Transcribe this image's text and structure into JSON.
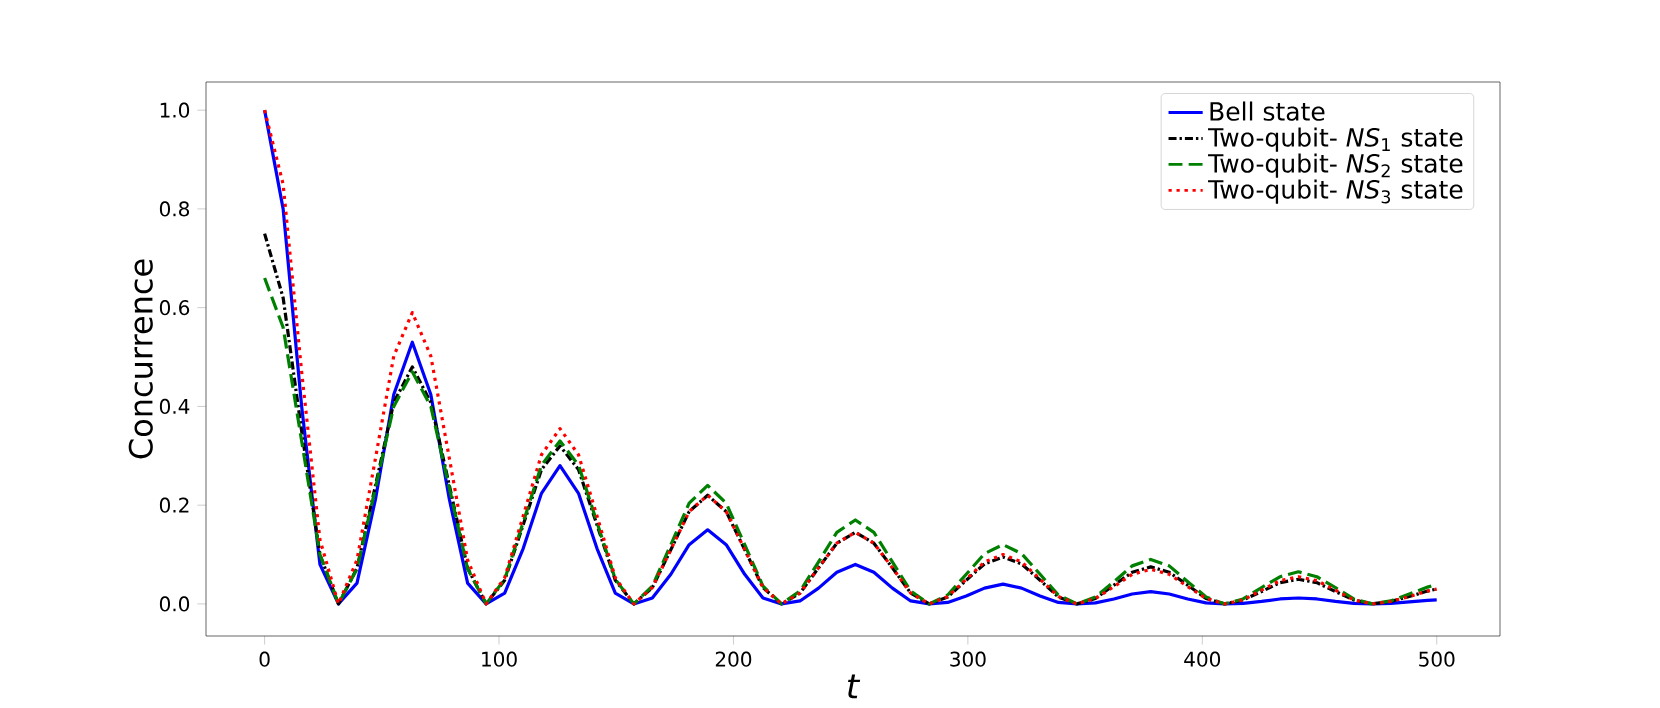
{
  "chart_data": {
    "type": "line",
    "xlabel": "*t*",
    "ylabel": "Concurrence",
    "xlim": [
      -25,
      527
    ],
    "ylim": [
      -0.065,
      1.057
    ],
    "xticks": [
      0,
      100,
      200,
      300,
      400,
      500
    ],
    "yticks": [
      {
        "value": 0,
        "label": "0.0"
      },
      {
        "value": 0.2,
        "label": "0.2"
      },
      {
        "value": 0.4,
        "label": "0.4"
      },
      {
        "value": 0.6,
        "label": "0.6"
      },
      {
        "value": 0.8,
        "label": "0.8"
      },
      {
        "value": 1,
        "label": "1.0"
      }
    ],
    "legend": "top right",
    "x": [
      0,
      7.9,
      15.8,
      23.6,
      31.5,
      39.4,
      47.3,
      55.1,
      63,
      70.9,
      78.8,
      86.6,
      94.5,
      102.4,
      110.3,
      118.1,
      126,
      133.9,
      141.8,
      149.6,
      157.5,
      165.4,
      173.3,
      181.1,
      189,
      196.9,
      204.8,
      212.6,
      220.5,
      228.4,
      236.3,
      244.1,
      252,
      259.9,
      267.8,
      275.6,
      283.5,
      291.4,
      299.3,
      307.1,
      315,
      322.9,
      330.8,
      338.6,
      346.5,
      354.4,
      362.3,
      370.1,
      378,
      385.9,
      393.8,
      401.6,
      409.5,
      417.4,
      425.3,
      433.1,
      441,
      448.9,
      456.8,
      464.6,
      472.5,
      480.4,
      488.3,
      496.1,
      500
    ],
    "series": [
      {
        "name": "Bell state",
        "color": "#0000ff",
        "line_style": "solid",
        "values": [
          1.0,
          0.8,
          0.4,
          0.08,
          0,
          0.042,
          0.212,
          0.424,
          0.53,
          0.424,
          0.212,
          0.042,
          0,
          0.022,
          0.112,
          0.224,
          0.28,
          0.224,
          0.112,
          0.022,
          0,
          0.012,
          0.06,
          0.12,
          0.15,
          0.12,
          0.06,
          0.012,
          0,
          0.006,
          0.032,
          0.064,
          0.08,
          0.064,
          0.032,
          0.006,
          0,
          0.003,
          0.016,
          0.032,
          0.04,
          0.032,
          0.016,
          0.003,
          0,
          0.002,
          0.01,
          0.02,
          0.025,
          0.02,
          0.01,
          0.002,
          0,
          0.001,
          0.005,
          0.01,
          0.012,
          0.01,
          0.005,
          0.001,
          0,
          0.001,
          0.004,
          0.007,
          0.008
        ]
      },
      {
        "name": "Two-qubit- *NS*$_{1}$ state",
        "color": "#000000",
        "line_style": "dashdot",
        "values": [
          0.75,
          0.62,
          0.35,
          0.1,
          0,
          0.072,
          0.24,
          0.408,
          0.48,
          0.408,
          0.24,
          0.072,
          0,
          0.048,
          0.16,
          0.272,
          0.32,
          0.272,
          0.16,
          0.048,
          0,
          0.033,
          0.11,
          0.187,
          0.22,
          0.187,
          0.11,
          0.033,
          0,
          0.022,
          0.073,
          0.123,
          0.145,
          0.123,
          0.073,
          0.022,
          0,
          0.014,
          0.048,
          0.081,
          0.095,
          0.081,
          0.048,
          0.014,
          0,
          0.011,
          0.038,
          0.064,
          0.075,
          0.064,
          0.038,
          0.011,
          0,
          0.008,
          0.025,
          0.043,
          0.05,
          0.043,
          0.025,
          0.008,
          0,
          0.005,
          0.015,
          0.026,
          0.03
        ]
      },
      {
        "name": "Two-qubit- *NS*$_{2}$ state",
        "color": "#008000",
        "line_style": "dashed",
        "values": [
          0.66,
          0.56,
          0.33,
          0.1,
          0,
          0.071,
          0.235,
          0.4,
          0.47,
          0.4,
          0.235,
          0.071,
          0,
          0.05,
          0.165,
          0.281,
          0.33,
          0.281,
          0.165,
          0.05,
          0,
          0.036,
          0.12,
          0.204,
          0.24,
          0.204,
          0.12,
          0.036,
          0,
          0.026,
          0.085,
          0.145,
          0.17,
          0.145,
          0.085,
          0.026,
          0,
          0.018,
          0.06,
          0.102,
          0.12,
          0.102,
          0.06,
          0.018,
          0,
          0.014,
          0.045,
          0.077,
          0.09,
          0.077,
          0.045,
          0.014,
          0,
          0.01,
          0.033,
          0.055,
          0.065,
          0.055,
          0.033,
          0.01,
          0,
          0.006,
          0.02,
          0.034,
          0.04
        ]
      },
      {
        "name": "Two-qubit- *NS*$_{3}$ state",
        "color": "#ff0000",
        "line_style": "dotted",
        "values": [
          1.0,
          0.85,
          0.47,
          0.13,
          0,
          0.089,
          0.295,
          0.502,
          0.59,
          0.502,
          0.295,
          0.089,
          0,
          0.053,
          0.178,
          0.302,
          0.355,
          0.302,
          0.178,
          0.053,
          0,
          0.033,
          0.11,
          0.187,
          0.22,
          0.187,
          0.11,
          0.033,
          0,
          0.022,
          0.073,
          0.123,
          0.145,
          0.123,
          0.073,
          0.022,
          0,
          0.015,
          0.05,
          0.085,
          0.1,
          0.085,
          0.05,
          0.015,
          0,
          0.011,
          0.035,
          0.06,
          0.07,
          0.06,
          0.035,
          0.011,
          0,
          0.008,
          0.028,
          0.047,
          0.055,
          0.047,
          0.028,
          0.008,
          0,
          0.005,
          0.015,
          0.026,
          0.03
        ]
      }
    ]
  }
}
